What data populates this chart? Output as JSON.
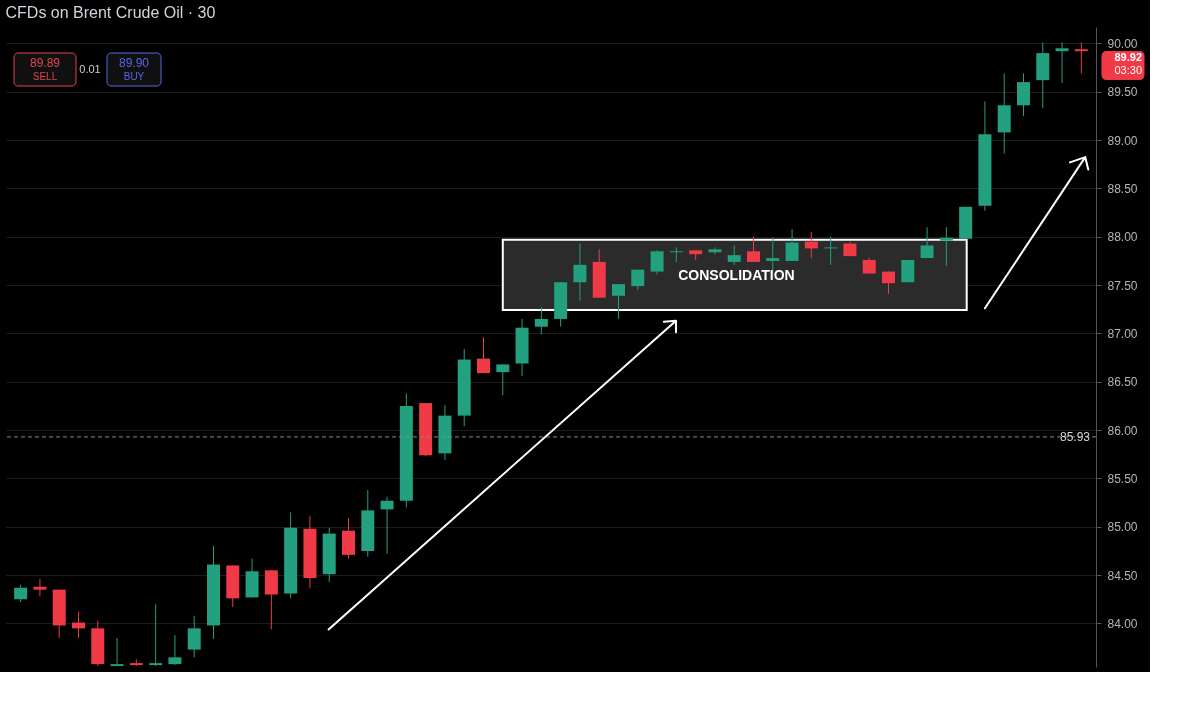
{
  "chart_data": {
    "type": "candlestick",
    "title": "CFDs on Brent Crude Oil · 30",
    "categories": [
      null,
      null,
      null,
      null,
      null,
      null,
      null,
      null,
      null,
      null,
      null,
      null,
      null,
      null,
      null,
      null,
      null,
      null,
      null,
      null,
      null,
      null,
      null,
      null,
      null,
      null,
      null,
      null,
      null,
      null,
      null,
      null,
      null,
      null,
      null,
      null,
      null,
      null,
      null,
      null,
      null,
      null,
      null,
      null,
      null,
      null,
      null,
      null,
      null,
      null,
      null,
      null,
      null,
      null,
      null,
      null
    ],
    "ohlc": [
      [
        84.25,
        84.4,
        84.22,
        84.37
      ],
      [
        84.38,
        84.46,
        84.28,
        84.35
      ],
      [
        84.35,
        84.35,
        83.85,
        83.98
      ],
      [
        84.01,
        84.12,
        83.85,
        83.95
      ],
      [
        83.95,
        84.03,
        83.56,
        83.58
      ],
      [
        83.56,
        83.85,
        83.56,
        83.58
      ],
      [
        83.59,
        83.63,
        83.56,
        83.57
      ],
      [
        83.57,
        84.2,
        83.56,
        83.59
      ],
      [
        83.58,
        83.88,
        83.57,
        83.65
      ],
      [
        83.73,
        84.08,
        83.65,
        83.95
      ],
      [
        83.98,
        84.8,
        83.84,
        84.61
      ],
      [
        84.6,
        84.6,
        84.17,
        84.26
      ],
      [
        84.27,
        84.67,
        84.27,
        84.54
      ],
      [
        84.55,
        84.55,
        83.94,
        84.3
      ],
      [
        84.31,
        85.15,
        84.26,
        84.99
      ],
      [
        84.98,
        85.11,
        84.37,
        84.47
      ],
      [
        84.51,
        84.99,
        84.43,
        84.93
      ],
      [
        84.96,
        85.09,
        84.67,
        84.71
      ],
      [
        84.75,
        85.38,
        84.69,
        85.17
      ],
      [
        85.18,
        85.31,
        84.72,
        85.27
      ],
      [
        85.27,
        86.38,
        85.2,
        86.25
      ],
      [
        86.28,
        86.28,
        85.73,
        85.74
      ],
      [
        85.76,
        86.26,
        85.69,
        86.15
      ],
      [
        86.15,
        86.84,
        86.04,
        86.73
      ],
      [
        86.74,
        86.96,
        86.59,
        86.59
      ],
      [
        86.6,
        86.68,
        86.36,
        86.68
      ],
      [
        86.69,
        87.15,
        86.56,
        87.06
      ],
      [
        87.07,
        87.27,
        86.99,
        87.15
      ],
      [
        87.15,
        87.53,
        87.07,
        87.53
      ],
      [
        87.53,
        87.93,
        87.34,
        87.71
      ],
      [
        87.74,
        87.87,
        87.37,
        87.37
      ],
      [
        87.39,
        87.51,
        87.15,
        87.51
      ],
      [
        87.49,
        87.66,
        87.45,
        87.66
      ],
      [
        87.64,
        87.86,
        87.61,
        87.85
      ],
      [
        87.84,
        87.89,
        87.74,
        87.85
      ],
      [
        87.86,
        87.86,
        87.76,
        87.82
      ],
      [
        87.84,
        87.89,
        87.82,
        87.87
      ],
      [
        87.74,
        87.91,
        87.71,
        87.81
      ],
      [
        87.85,
        88.0,
        87.74,
        87.74
      ],
      [
        87.75,
        87.99,
        87.65,
        87.78
      ],
      [
        87.75,
        88.08,
        87.75,
        87.94
      ],
      [
        87.95,
        88.05,
        87.78,
        87.88
      ],
      [
        87.88,
        88.0,
        87.71,
        87.89
      ],
      [
        87.93,
        87.95,
        87.8,
        87.8
      ],
      [
        87.76,
        87.78,
        87.62,
        87.62
      ],
      [
        87.64,
        87.64,
        87.41,
        87.52
      ],
      [
        87.53,
        87.76,
        87.53,
        87.76
      ],
      [
        87.78,
        88.1,
        87.78,
        87.91
      ],
      [
        87.96,
        88.1,
        87.7,
        87.99
      ],
      [
        87.98,
        88.31,
        87.98,
        88.31
      ],
      [
        88.32,
        89.4,
        88.27,
        89.06
      ],
      [
        89.08,
        89.69,
        88.86,
        89.36
      ],
      [
        89.36,
        89.69,
        89.25,
        89.6
      ],
      [
        89.62,
        90.01,
        89.33,
        89.9
      ],
      [
        89.92,
        90.01,
        89.59,
        89.95
      ],
      [
        89.94,
        90.01,
        89.69,
        89.92
      ]
    ],
    "colors": [
      "#22a07f",
      "#f03a47",
      "#f03a47",
      "#f03a47",
      "#f03a47",
      "#22a07f",
      "#f03a47",
      "#22a07f",
      "#22a07f",
      "#22a07f",
      "#22a07f",
      "#f03a47",
      "#22a07f",
      "#f03a47",
      "#22a07f",
      "#f03a47",
      "#22a07f",
      "#f03a47",
      "#22a07f",
      "#22a07f",
      "#22a07f",
      "#f03a47",
      "#22a07f",
      "#22a07f",
      "#f03a47",
      "#22a07f",
      "#22a07f",
      "#22a07f",
      "#22a07f",
      "#22a07f",
      "#f03a47",
      "#22a07f",
      "#22a07f",
      "#22a07f",
      "#22a07f",
      "#f03a47",
      "#22a07f",
      "#22a07f",
      "#f03a47",
      "#22a07f",
      "#22a07f",
      "#f03a47",
      "#22a07f",
      "#f03a47",
      "#f03a47",
      "#f03a47",
      "#22a07f",
      "#22a07f",
      "#22a07f",
      "#22a07f",
      "#22a07f",
      "#22a07f",
      "#22a07f",
      "#22a07f",
      "#22a07f",
      "#f03a47"
    ],
    "ylim": [
      83.55,
      90.17
    ],
    "yticks": [
      {
        "value": 84,
        "label": "84.00"
      },
      {
        "value": 84.5,
        "label": "84.50"
      },
      {
        "value": 85,
        "label": "85.00"
      },
      {
        "value": 85.5,
        "label": "85.50"
      },
      {
        "value": 86,
        "label": "86.00"
      },
      {
        "value": 86.5,
        "label": "86.50"
      },
      {
        "value": 87,
        "label": "87.00"
      },
      {
        "value": 87.5,
        "label": "87.50"
      },
      {
        "value": 88,
        "label": "88.00"
      },
      {
        "value": 88.5,
        "label": "88.50"
      },
      {
        "value": 89,
        "label": "89.00"
      },
      {
        "value": 89.5,
        "label": "89.50"
      },
      {
        "value": 90,
        "label": "90.00"
      }
    ],
    "ref_lines": [
      {
        "axis": "y",
        "value": 85.93,
        "label": "85.93",
        "color": "#8a8a8a",
        "line_style": "dashed"
      }
    ],
    "annotations": [
      "CONSOLIDATION",
      "89.89",
      "SELL",
      "0.01",
      "89.90",
      "BUY",
      "89.92",
      "03:30"
    ],
    "grid": "y",
    "tick_labels": "y"
  }
}
